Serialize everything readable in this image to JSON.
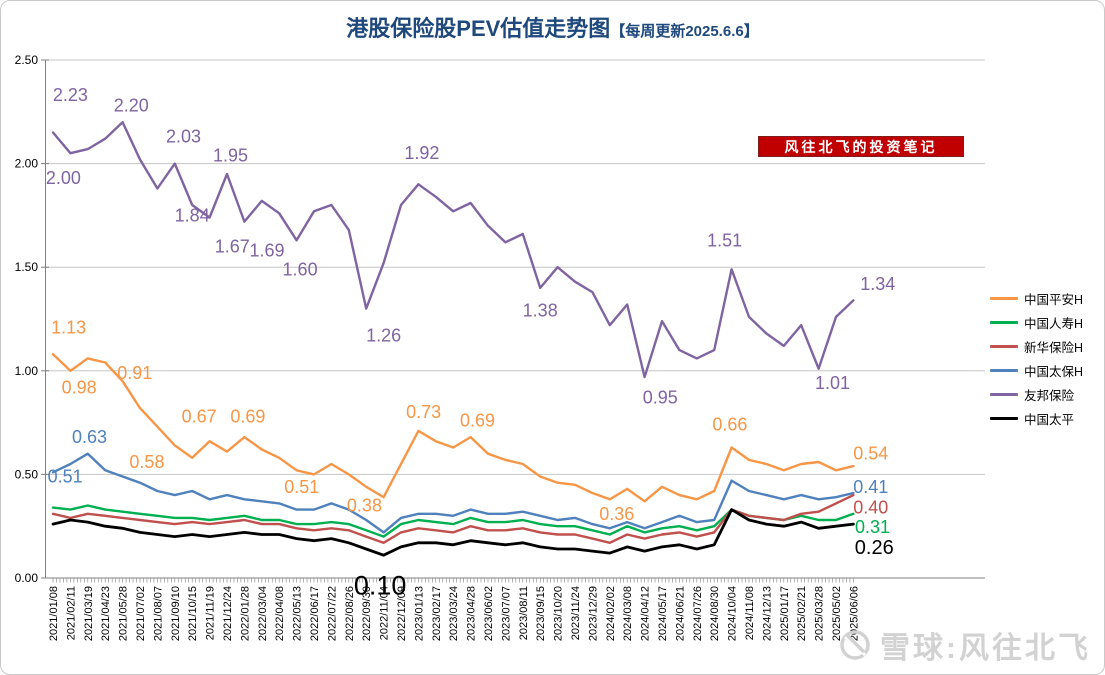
{
  "title": {
    "main": "港股保险股PEV估值走势图",
    "suffix": "【每周更新2025.6.6】",
    "color": "#1F497D"
  },
  "badge": {
    "text": "风往北飞的投资笔记",
    "bg": "#C00000",
    "fg": "#FFFFFF"
  },
  "watermark": {
    "text": "雪球:风往北飞",
    "color": "#D2D2D2"
  },
  "chart_data": {
    "type": "line",
    "title": "港股保险股PEV估值走势图【每周更新2025.6.6】",
    "xlabel": "",
    "ylabel": "",
    "ylim": [
      0.0,
      2.5
    ],
    "y_ticks": [
      "0.00",
      "0.50",
      "1.00",
      "1.50",
      "2.00",
      "2.50"
    ],
    "grid": true,
    "legend_position": "right",
    "minor_ticks_per_label": 5,
    "categories": [
      "2021/01/08",
      "2021/02/11",
      "2021/03/19",
      "2021/04/23",
      "2021/05/28",
      "2021/07/02",
      "2021/08/07",
      "2021/09/10",
      "2021/10/15",
      "2021/11/19",
      "2021/12/24",
      "2022/01/28",
      "2022/03/04",
      "2022/04/08",
      "2022/05/13",
      "2022/06/17",
      "2022/07/22",
      "2022/08/26",
      "2022/09/30",
      "2022/11/04",
      "2022/12/09",
      "2023/01/13",
      "2023/02/17",
      "2023/03/24",
      "2023/04/28",
      "2023/06/02",
      "2023/07/07",
      "2023/08/11",
      "2023/09/15",
      "2023/10/20",
      "2023/11/24",
      "2023/12/29",
      "2024/02/02",
      "2024/03/08",
      "2024/04/12",
      "2024/05/17",
      "2024/06/21",
      "2024/07/26",
      "2024/08/30",
      "2024/10/04",
      "2024/11/08",
      "2024/12/13",
      "2025/01/17",
      "2025/02/21",
      "2025/03/28",
      "2025/05/02",
      "2025/06/06"
    ],
    "series": [
      {
        "name": "中国平安H",
        "color": "#F79646",
        "values": [
          1.08,
          1.0,
          1.06,
          1.04,
          0.95,
          0.82,
          0.73,
          0.64,
          0.58,
          0.66,
          0.61,
          0.68,
          0.62,
          0.58,
          0.52,
          0.5,
          0.55,
          0.5,
          0.44,
          0.39,
          0.55,
          0.71,
          0.66,
          0.63,
          0.68,
          0.6,
          0.57,
          0.55,
          0.49,
          0.46,
          0.45,
          0.41,
          0.38,
          0.43,
          0.37,
          0.44,
          0.4,
          0.38,
          0.42,
          0.63,
          0.57,
          0.55,
          0.52,
          0.55,
          0.56,
          0.52,
          0.54
        ]
      },
      {
        "name": "中国人寿H",
        "color": "#00B050",
        "values": [
          0.34,
          0.33,
          0.35,
          0.33,
          0.32,
          0.31,
          0.3,
          0.29,
          0.29,
          0.28,
          0.29,
          0.3,
          0.28,
          0.28,
          0.26,
          0.26,
          0.27,
          0.26,
          0.23,
          0.2,
          0.26,
          0.28,
          0.27,
          0.26,
          0.29,
          0.27,
          0.27,
          0.28,
          0.26,
          0.25,
          0.25,
          0.23,
          0.21,
          0.25,
          0.22,
          0.24,
          0.25,
          0.23,
          0.25,
          0.33,
          0.3,
          0.29,
          0.28,
          0.3,
          0.28,
          0.28,
          0.31
        ]
      },
      {
        "name": "新华保险H",
        "color": "#C0504D",
        "values": [
          0.31,
          0.29,
          0.31,
          0.3,
          0.29,
          0.28,
          0.27,
          0.26,
          0.27,
          0.26,
          0.27,
          0.28,
          0.26,
          0.26,
          0.24,
          0.23,
          0.24,
          0.23,
          0.2,
          0.17,
          0.22,
          0.24,
          0.23,
          0.22,
          0.25,
          0.23,
          0.23,
          0.24,
          0.22,
          0.21,
          0.21,
          0.19,
          0.17,
          0.21,
          0.19,
          0.21,
          0.22,
          0.2,
          0.22,
          0.33,
          0.3,
          0.29,
          0.28,
          0.31,
          0.32,
          0.36,
          0.4
        ]
      },
      {
        "name": "中国太保H",
        "color": "#4F81BD",
        "values": [
          0.51,
          0.55,
          0.6,
          0.52,
          0.49,
          0.46,
          0.42,
          0.4,
          0.42,
          0.38,
          0.4,
          0.38,
          0.37,
          0.36,
          0.33,
          0.33,
          0.36,
          0.33,
          0.28,
          0.22,
          0.29,
          0.31,
          0.31,
          0.3,
          0.33,
          0.31,
          0.31,
          0.32,
          0.3,
          0.28,
          0.29,
          0.26,
          0.24,
          0.27,
          0.24,
          0.27,
          0.3,
          0.27,
          0.28,
          0.47,
          0.42,
          0.4,
          0.38,
          0.4,
          0.38,
          0.39,
          0.41
        ]
      },
      {
        "name": "友邦保险",
        "color": "#8064A2",
        "values": [
          2.15,
          2.05,
          2.07,
          2.12,
          2.2,
          2.02,
          1.88,
          2.0,
          1.8,
          1.74,
          1.95,
          1.72,
          1.82,
          1.76,
          1.63,
          1.77,
          1.8,
          1.68,
          1.3,
          1.52,
          1.8,
          1.9,
          1.84,
          1.77,
          1.81,
          1.7,
          1.62,
          1.66,
          1.4,
          1.5,
          1.43,
          1.38,
          1.22,
          1.32,
          0.97,
          1.24,
          1.1,
          1.06,
          1.1,
          1.49,
          1.26,
          1.18,
          1.12,
          1.22,
          1.01,
          1.26,
          1.34
        ]
      },
      {
        "name": "中国太平",
        "color": "#000000",
        "values": [
          0.26,
          0.28,
          0.27,
          0.25,
          0.24,
          0.22,
          0.21,
          0.2,
          0.21,
          0.2,
          0.21,
          0.22,
          0.21,
          0.21,
          0.19,
          0.18,
          0.19,
          0.17,
          0.14,
          0.11,
          0.15,
          0.17,
          0.17,
          0.16,
          0.18,
          0.17,
          0.16,
          0.17,
          0.15,
          0.14,
          0.14,
          0.13,
          0.12,
          0.15,
          0.13,
          0.15,
          0.16,
          0.14,
          0.16,
          0.33,
          0.28,
          0.26,
          0.25,
          0.27,
          0.24,
          0.25,
          0.26
        ]
      }
    ],
    "annotations": [
      {
        "text": "2.23",
        "series": "友邦保险",
        "x": 1.0,
        "y": 2.33,
        "size": 18
      },
      {
        "text": "2.00",
        "series": "友邦保险",
        "x": 0.6,
        "y": 1.93,
        "size": 18
      },
      {
        "text": "2.20",
        "series": "友邦保险",
        "x": 4.5,
        "y": 2.28,
        "size": 18
      },
      {
        "text": "2.03",
        "series": "友邦保险",
        "x": 7.5,
        "y": 2.13,
        "size": 18
      },
      {
        "text": "1.84",
        "series": "友邦保险",
        "x": 8.0,
        "y": 1.75,
        "size": 18
      },
      {
        "text": "1.95",
        "series": "友邦保险",
        "x": 10.2,
        "y": 2.04,
        "size": 18
      },
      {
        "text": "1.67",
        "series": "友邦保险",
        "x": 10.3,
        "y": 1.6,
        "size": 18
      },
      {
        "text": "1.69",
        "series": "友邦保险",
        "x": 12.3,
        "y": 1.58,
        "size": 18
      },
      {
        "text": "1.60",
        "series": "友邦保险",
        "x": 14.2,
        "y": 1.49,
        "size": 18
      },
      {
        "text": "1.26",
        "series": "友邦保险",
        "x": 19.0,
        "y": 1.17,
        "size": 18
      },
      {
        "text": "1.92",
        "series": "友邦保险",
        "x": 21.2,
        "y": 2.05,
        "size": 18
      },
      {
        "text": "1.38",
        "series": "友邦保险",
        "x": 28.0,
        "y": 1.29,
        "size": 18
      },
      {
        "text": "0.95",
        "series": "友邦保险",
        "x": 34.9,
        "y": 0.87,
        "size": 18
      },
      {
        "text": "1.51",
        "series": "友邦保险",
        "x": 38.6,
        "y": 1.63,
        "size": 18
      },
      {
        "text": "1.01",
        "series": "友邦保险",
        "x": 44.8,
        "y": 0.94,
        "size": 18
      },
      {
        "text": "1.34",
        "series": "友邦保险",
        "x": 47.4,
        "y": 1.42,
        "size": 18
      },
      {
        "text": "1.13",
        "series": "中国平安H",
        "x": 0.9,
        "y": 1.21,
        "size": 18
      },
      {
        "text": "0.98",
        "series": "中国平安H",
        "x": 1.5,
        "y": 0.92,
        "size": 18
      },
      {
        "text": "0.91",
        "series": "中国平安H",
        "x": 4.7,
        "y": 0.99,
        "size": 18
      },
      {
        "text": "0.58",
        "series": "中国平安H",
        "x": 5.4,
        "y": 0.56,
        "size": 18
      },
      {
        "text": "0.67",
        "series": "中国平安H",
        "x": 8.4,
        "y": 0.78,
        "size": 18
      },
      {
        "text": "0.69",
        "series": "中国平安H",
        "x": 11.2,
        "y": 0.78,
        "size": 18
      },
      {
        "text": "0.51",
        "series": "中国平安H",
        "x": 14.3,
        "y": 0.44,
        "size": 18
      },
      {
        "text": "0.38",
        "series": "中国平安H",
        "x": 17.9,
        "y": 0.35,
        "size": 18
      },
      {
        "text": "0.73",
        "series": "中国平安H",
        "x": 21.3,
        "y": 0.8,
        "size": 18
      },
      {
        "text": "0.69",
        "series": "中国平安H",
        "x": 24.4,
        "y": 0.76,
        "size": 18
      },
      {
        "text": "0.36",
        "series": "中国平安H",
        "x": 32.4,
        "y": 0.31,
        "size": 18
      },
      {
        "text": "0.66",
        "series": "中国平安H",
        "x": 38.9,
        "y": 0.74,
        "size": 18
      },
      {
        "text": "0.54",
        "series": "中国平安H",
        "x": 47.0,
        "y": 0.6,
        "size": 18
      },
      {
        "text": "0.63",
        "series": "中国太保H",
        "x": 2.1,
        "y": 0.68,
        "size": 18
      },
      {
        "text": "0.51",
        "series": "中国太保H",
        "x": 0.7,
        "y": 0.49,
        "size": 18
      },
      {
        "text": "0.41",
        "series": "中国太保H",
        "x": 47.0,
        "y": 0.44,
        "size": 18
      },
      {
        "text": "0.40",
        "series": "新华保险H",
        "x": 47.0,
        "y": 0.34,
        "size": 18
      },
      {
        "text": "0.31",
        "series": "中国人寿H",
        "x": 47.1,
        "y": 0.245,
        "size": 18
      },
      {
        "text": "0.10",
        "series": "中国太平",
        "x": 18.8,
        "y": -0.05,
        "size": 27
      },
      {
        "text": "0.26",
        "series": "中国太平",
        "x": 47.2,
        "y": 0.145,
        "size": 20
      }
    ]
  }
}
